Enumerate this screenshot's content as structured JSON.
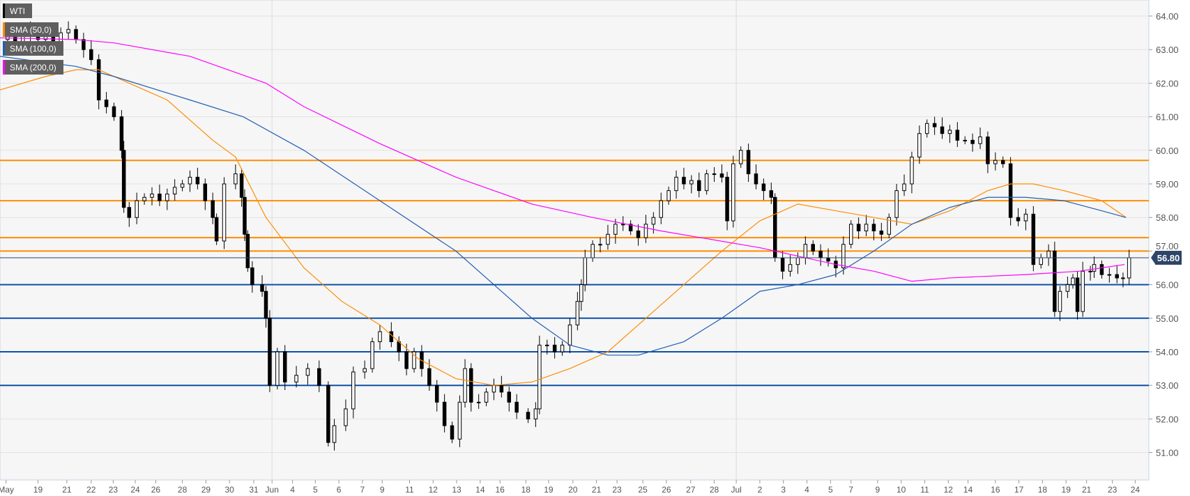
{
  "chart_data": {
    "type": "candlestick",
    "symbol": "WTI",
    "legend": [
      {
        "label": "WTI",
        "color": "#000000"
      },
      {
        "label": "SMA (50,0)",
        "color": "#ff8c00"
      },
      {
        "label": "SMA (100,0)",
        "color": "#1f5fb4"
      },
      {
        "label": "SMA (200,0)",
        "color": "#ff00ff"
      }
    ],
    "ylim": [
      50.3,
      64.4
    ],
    "xlim": [
      0,
      151.2
    ],
    "y_ticks": [
      "64.00",
      "63.00",
      "62.00",
      "61.00",
      "60.00",
      "59.00",
      "58.00",
      "57.00",
      "56.00",
      "55.00",
      "54.00",
      "53.00",
      "52.00",
      "51.00"
    ],
    "x_ticks": [
      {
        "label": "May",
        "bar": 0.8
      },
      {
        "label": "19",
        "bar": 5
      },
      {
        "label": "21",
        "bar": 8.8
      },
      {
        "label": "22",
        "bar": 12
      },
      {
        "label": "23",
        "bar": 14.9
      },
      {
        "label": "24",
        "bar": 17.8
      },
      {
        "label": "26",
        "bar": 20.5
      },
      {
        "label": "28",
        "bar": 24
      },
      {
        "label": "29",
        "bar": 27.1
      },
      {
        "label": "30",
        "bar": 30.2
      },
      {
        "label": "31",
        "bar": 33.4
      },
      {
        "label": "Jun",
        "bar": 35.8
      },
      {
        "label": "4",
        "bar": 38.5
      },
      {
        "label": "5",
        "bar": 41.5
      },
      {
        "label": "6",
        "bar": 44.6
      },
      {
        "label": "7",
        "bar": 47.7
      },
      {
        "label": "9",
        "bar": 50.3
      },
      {
        "label": "11",
        "bar": 53.9
      },
      {
        "label": "12",
        "bar": 57
      },
      {
        "label": "13",
        "bar": 60.1
      },
      {
        "label": "14",
        "bar": 63.2
      },
      {
        "label": "16",
        "bar": 65.8
      },
      {
        "label": "18",
        "bar": 69.2
      },
      {
        "label": "19",
        "bar": 72.2
      },
      {
        "label": "20",
        "bar": 75.4
      },
      {
        "label": "21",
        "bar": 78.5
      },
      {
        "label": "23",
        "bar": 81.2
      },
      {
        "label": "25",
        "bar": 84.6
      },
      {
        "label": "26",
        "bar": 87.7
      },
      {
        "label": "27",
        "bar": 90.9
      },
      {
        "label": "28",
        "bar": 94
      },
      {
        "label": "Jul",
        "bar": 96.9
      },
      {
        "label": "2",
        "bar": 100
      },
      {
        "label": "3",
        "bar": 103.1
      },
      {
        "label": "4",
        "bar": 106.2
      },
      {
        "label": "5",
        "bar": 109.3
      },
      {
        "label": "7",
        "bar": 112
      },
      {
        "label": "9",
        "bar": 115.5
      },
      {
        "label": "10",
        "bar": 118.6
      },
      {
        "label": "11",
        "bar": 121.7
      },
      {
        "label": "12",
        "bar": 124.8
      },
      {
        "label": "14",
        "bar": 127.4
      },
      {
        "label": "16",
        "bar": 131
      },
      {
        "label": "17",
        "bar": 134.1
      },
      {
        "label": "18",
        "bar": 137.2
      },
      {
        "label": "19",
        "bar": 140.3
      },
      {
        "label": "21",
        "bar": 143
      },
      {
        "label": "23",
        "bar": 146.4
      },
      {
        "label": "24",
        "bar": 149.4
      }
    ],
    "month_separators": [
      35.8,
      96.9
    ],
    "closes": [
      [
        0,
        63.3
      ],
      [
        1,
        63.5
      ],
      [
        2,
        63.2
      ],
      [
        3,
        63.6
      ],
      [
        4,
        63.4
      ],
      [
        5,
        63.3
      ],
      [
        6,
        63.5
      ],
      [
        7,
        63.2
      ],
      [
        8,
        63.5
      ],
      [
        9,
        63.6
      ],
      [
        10,
        63.3
      ],
      [
        11,
        63.0
      ],
      [
        12,
        62.7
      ],
      [
        13,
        61.5
      ],
      [
        14,
        61.3
      ],
      [
        15,
        61.0
      ],
      [
        16,
        60.0
      ],
      [
        16.3,
        58.3
      ],
      [
        17,
        58.0
      ],
      [
        18,
        58.5
      ],
      [
        19,
        58.6
      ],
      [
        20,
        58.7
      ],
      [
        21,
        58.5
      ],
      [
        22,
        58.7
      ],
      [
        23,
        58.9
      ],
      [
        24,
        59.0
      ],
      [
        25,
        59.2
      ],
      [
        26,
        59.0
      ],
      [
        27,
        58.5
      ],
      [
        28,
        58.0
      ],
      [
        28.5,
        57.3
      ],
      [
        29.5,
        59.0
      ],
      [
        31,
        59.3
      ],
      [
        31.8,
        58.6
      ],
      [
        32.2,
        57.5
      ],
      [
        32.6,
        56.5
      ],
      [
        33.2,
        56.0
      ],
      [
        34.5,
        55.8
      ],
      [
        35,
        55.0
      ],
      [
        35.5,
        53.0
      ],
      [
        36.5,
        54.0
      ],
      [
        37.5,
        53.1
      ],
      [
        39,
        53.3
      ],
      [
        40.5,
        53.5
      ],
      [
        42,
        53.0
      ],
      [
        43.2,
        51.3
      ],
      [
        44,
        51.8
      ],
      [
        45.5,
        52.3
      ],
      [
        46.5,
        53.4
      ],
      [
        48,
        53.5
      ],
      [
        49,
        54.3
      ],
      [
        50,
        54.6
      ],
      [
        51.5,
        54.3
      ],
      [
        52.5,
        54.0
      ],
      [
        53.5,
        53.5
      ],
      [
        54.5,
        54.0
      ],
      [
        55.5,
        53.5
      ],
      [
        56.5,
        53.0
      ],
      [
        57.5,
        52.5
      ],
      [
        58.5,
        51.8
      ],
      [
        59.5,
        51.4
      ],
      [
        60.5,
        52.5
      ],
      [
        61.2,
        53.5
      ],
      [
        62,
        52.5
      ],
      [
        63,
        52.5
      ],
      [
        64,
        52.8
      ],
      [
        65,
        53.0
      ],
      [
        66,
        52.8
      ],
      [
        67,
        52.5
      ],
      [
        68,
        52.2
      ],
      [
        69.5,
        52.0
      ],
      [
        70.5,
        52.3
      ],
      [
        71,
        54.2
      ],
      [
        72,
        54.2
      ],
      [
        73,
        54.0
      ],
      [
        74,
        54.2
      ],
      [
        75,
        54.8
      ],
      [
        76,
        55.5
      ],
      [
        76.5,
        56.0
      ],
      [
        77,
        56.8
      ],
      [
        78,
        57.2
      ],
      [
        79,
        57.2
      ],
      [
        80,
        57.5
      ],
      [
        81,
        57.8
      ],
      [
        82,
        57.8
      ],
      [
        83,
        57.6
      ],
      [
        84,
        57.4
      ],
      [
        85,
        57.8
      ],
      [
        86,
        58.0
      ],
      [
        87,
        58.5
      ],
      [
        88,
        58.8
      ],
      [
        89,
        59.2
      ],
      [
        90,
        59.0
      ],
      [
        91,
        59.1
      ],
      [
        92,
        58.8
      ],
      [
        93,
        59.3
      ],
      [
        94,
        59.3
      ],
      [
        95,
        59.2
      ],
      [
        95.7,
        57.9
      ],
      [
        96.5,
        59.6
      ],
      [
        97.5,
        60.0
      ],
      [
        98.5,
        59.3
      ],
      [
        99.5,
        59.0
      ],
      [
        100.5,
        58.8
      ],
      [
        101.5,
        58.6
      ],
      [
        102,
        56.8
      ],
      [
        103,
        56.4
      ],
      [
        104,
        56.6
      ],
      [
        105,
        56.8
      ],
      [
        106,
        57.2
      ],
      [
        107,
        57.0
      ],
      [
        108,
        56.8
      ],
      [
        109,
        56.7
      ],
      [
        110,
        56.5
      ],
      [
        111,
        57.2
      ],
      [
        112,
        57.8
      ],
      [
        113,
        57.6
      ],
      [
        114,
        57.8
      ],
      [
        115,
        57.6
      ],
      [
        116,
        57.5
      ],
      [
        117,
        58.0
      ],
      [
        118,
        58.8
      ],
      [
        119,
        59.0
      ],
      [
        120,
        59.8
      ],
      [
        121,
        60.5
      ],
      [
        122,
        60.8
      ],
      [
        123,
        60.7
      ],
      [
        124,
        60.5
      ],
      [
        125,
        60.6
      ],
      [
        126,
        60.3
      ],
      [
        127,
        60.3
      ],
      [
        128,
        60.2
      ],
      [
        129,
        60.4
      ],
      [
        130,
        59.6
      ],
      [
        131,
        59.7
      ],
      [
        132,
        59.6
      ],
      [
        133,
        58.0
      ],
      [
        134,
        57.9
      ],
      [
        135,
        58.1
      ],
      [
        136,
        56.6
      ],
      [
        137,
        56.8
      ],
      [
        138,
        57.0
      ],
      [
        138.8,
        55.2
      ],
      [
        139.5,
        55.8
      ],
      [
        140.5,
        56.0
      ],
      [
        141.2,
        56.2
      ],
      [
        141.8,
        55.2
      ],
      [
        142.5,
        56.4
      ],
      [
        143.5,
        56.4
      ],
      [
        144,
        56.6
      ],
      [
        145,
        56.3
      ],
      [
        146,
        56.3
      ],
      [
        147,
        56.2
      ],
      [
        147.8,
        56.2
      ],
      [
        148.6,
        56.8
      ]
    ],
    "sma": [
      {
        "name": "SMA (50,0)",
        "color": "#ff8c00",
        "points": [
          [
            0,
            61.8
          ],
          [
            6,
            62.2
          ],
          [
            10,
            62.4
          ],
          [
            13,
            62.4
          ],
          [
            17,
            62.0
          ],
          [
            22,
            61.5
          ],
          [
            28,
            60.3
          ],
          [
            31,
            59.8
          ],
          [
            35,
            58.0
          ],
          [
            40,
            56.5
          ],
          [
            45,
            55.5
          ],
          [
            50,
            54.8
          ],
          [
            55,
            53.8
          ],
          [
            60,
            53.2
          ],
          [
            65,
            53.0
          ],
          [
            70,
            53.1
          ],
          [
            75,
            53.5
          ],
          [
            80,
            54.0
          ],
          [
            85,
            55.0
          ],
          [
            90,
            56.0
          ],
          [
            95,
            57.0
          ],
          [
            100,
            57.9
          ],
          [
            105,
            58.4
          ],
          [
            110,
            58.2
          ],
          [
            115,
            58.0
          ],
          [
            120,
            57.8
          ],
          [
            125,
            58.2
          ],
          [
            130,
            58.8
          ],
          [
            133,
            59.0
          ],
          [
            136,
            59.0
          ],
          [
            140,
            58.8
          ],
          [
            145,
            58.5
          ],
          [
            148.2,
            58.0
          ]
        ]
      },
      {
        "name": "SMA (100,0)",
        "color": "#1f5fb4",
        "points": [
          [
            0,
            62.8
          ],
          [
            10,
            62.5
          ],
          [
            15,
            62.2
          ],
          [
            25,
            61.5
          ],
          [
            32,
            61.0
          ],
          [
            40,
            60.0
          ],
          [
            50,
            58.5
          ],
          [
            60,
            57.0
          ],
          [
            70,
            55.0
          ],
          [
            75,
            54.2
          ],
          [
            80,
            53.9
          ],
          [
            84,
            53.9
          ],
          [
            90,
            54.3
          ],
          [
            95,
            55.0
          ],
          [
            100,
            55.8
          ],
          [
            105,
            56.0
          ],
          [
            110,
            56.3
          ],
          [
            115,
            57.0
          ],
          [
            120,
            57.8
          ],
          [
            125,
            58.3
          ],
          [
            130,
            58.6
          ],
          [
            135,
            58.6
          ],
          [
            140,
            58.5
          ],
          [
            145,
            58.2
          ],
          [
            148.2,
            58.0
          ]
        ]
      },
      {
        "name": "SMA (200,0)",
        "color": "#ff00ff",
        "points": [
          [
            0,
            63.35
          ],
          [
            10,
            63.3
          ],
          [
            15,
            63.2
          ],
          [
            25,
            62.8
          ],
          [
            35,
            62.0
          ],
          [
            40,
            61.3
          ],
          [
            50,
            60.2
          ],
          [
            60,
            59.2
          ],
          [
            70,
            58.4
          ],
          [
            78,
            58.0
          ],
          [
            87,
            57.6
          ],
          [
            100,
            57.1
          ],
          [
            110,
            56.6
          ],
          [
            115,
            56.4
          ],
          [
            120,
            56.1
          ],
          [
            125,
            56.2
          ],
          [
            135,
            56.3
          ],
          [
            142,
            56.4
          ],
          [
            148,
            56.6
          ]
        ]
      }
    ],
    "levels": [
      {
        "price": 59.7,
        "color": "#ff8c00"
      },
      {
        "price": 58.5,
        "color": "#ff8c00"
      },
      {
        "price": 57.4,
        "color": "#ff8c00"
      },
      {
        "price": 57.0,
        "color": "#ff8c00"
      },
      {
        "price": 56.0,
        "color": "#0d4fa8"
      },
      {
        "price": 55.0,
        "color": "#0d4fa8"
      },
      {
        "price": 54.0,
        "color": "#0d4fa8"
      },
      {
        "price": 53.0,
        "color": "#0d4fa8"
      }
    ],
    "last_price": {
      "value": 56.8,
      "label": "56.80",
      "color": "#2e4468"
    }
  }
}
